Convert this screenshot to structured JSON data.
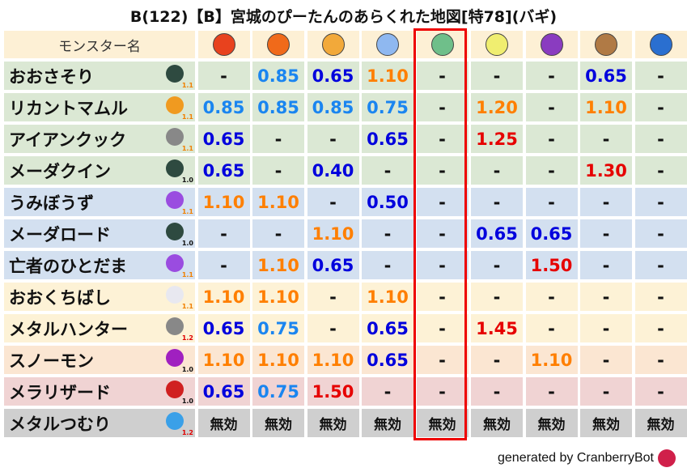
{
  "title": "B(122)【B】宮城のぴーたんのあらくれた地図[特78](バギ)",
  "header": {
    "name_label": "モンスター名",
    "elements": [
      {
        "icon": "mera-fireball-icon",
        "color": "#e8421e"
      },
      {
        "icon": "gira-flame-icon",
        "color": "#f06a1a"
      },
      {
        "icon": "io-explosion-icon",
        "color": "#f2a93a"
      },
      {
        "icon": "hyado-ice-icon",
        "color": "#8fb8f0"
      },
      {
        "icon": "bagi-tornado-icon",
        "color": "#6fbf8a"
      },
      {
        "icon": "dein-light-icon",
        "color": "#f0ee70"
      },
      {
        "icon": "doruma-dark-icon",
        "color": "#8a3cc0"
      },
      {
        "icon": "jibasu-earth-icon",
        "color": "#b07a45"
      },
      {
        "icon": "water-wave-icon",
        "color": "#2a6fd0"
      }
    ],
    "highlighted_column": 4
  },
  "colors": {
    "highlight": "#ee0000",
    "weak_resist": "#1a85f0",
    "strong_resist": "#0000dd",
    "weak": "#ff7f00",
    "very_weak": "#e60000",
    "ver_1.0": "#111111",
    "ver_1.1": "#f08000",
    "ver_1.2": "#e00000"
  },
  "rows": [
    {
      "name": "おおさそり",
      "icon": "insect-icon",
      "icon_color": "#2e4a40",
      "version": "1.1",
      "bg": "#dbe8d4",
      "values": [
        "-",
        "0.85",
        "0.65",
        "1.10",
        "-",
        "-",
        "-",
        "0.65",
        "-"
      ]
    },
    {
      "name": "リカントマムル",
      "icon": "paw-icon",
      "icon_color": "#f09a20",
      "version": "1.1",
      "bg": "#dbe8d4",
      "values": [
        "0.85",
        "0.85",
        "0.85",
        "0.75",
        "-",
        "1.20",
        "-",
        "1.10",
        "-"
      ]
    },
    {
      "name": "アイアンクック",
      "icon": "gear-icon",
      "icon_color": "#888888",
      "version": "1.1",
      "bg": "#dbe8d4",
      "values": [
        "0.65",
        "-",
        "-",
        "0.65",
        "-",
        "1.25",
        "-",
        "-",
        "-"
      ]
    },
    {
      "name": "メーダクイン",
      "icon": "insect-icon",
      "icon_color": "#2e4a40",
      "version": "1.0",
      "bg": "#dbe8d4",
      "values": [
        "0.65",
        "-",
        "0.40",
        "-",
        "-",
        "-",
        "-",
        "1.30",
        "-"
      ]
    },
    {
      "name": "うみぼうず",
      "icon": "ghost-icon",
      "icon_color": "#9a4ce0",
      "version": "1.1",
      "bg": "#d3e0f0",
      "values": [
        "1.10",
        "1.10",
        "-",
        "0.50",
        "-",
        "-",
        "-",
        "-",
        "-"
      ]
    },
    {
      "name": "メーダロード",
      "icon": "insect-icon",
      "icon_color": "#2e4a40",
      "version": "1.0",
      "bg": "#d3e0f0",
      "values": [
        "-",
        "-",
        "1.10",
        "-",
        "-",
        "0.65",
        "0.65",
        "-",
        "-"
      ]
    },
    {
      "name": "亡者のひとだま",
      "icon": "ghost-icon",
      "icon_color": "#9a4ce0",
      "version": "1.1",
      "bg": "#d3e0f0",
      "values": [
        "-",
        "1.10",
        "0.65",
        "-",
        "-",
        "-",
        "1.50",
        "-",
        "-"
      ]
    },
    {
      "name": "おおくちばし",
      "icon": "wing-icon",
      "icon_color": "#e8e8f0",
      "version": "1.1",
      "bg": "#fdf2d6",
      "values": [
        "1.10",
        "1.10",
        "-",
        "1.10",
        "-",
        "-",
        "-",
        "-",
        "-"
      ]
    },
    {
      "name": "メタルハンター",
      "icon": "gear-icon",
      "icon_color": "#888888",
      "version": "1.2",
      "bg": "#fdf2d6",
      "values": [
        "0.65",
        "0.75",
        "-",
        "0.65",
        "-",
        "1.45",
        "-",
        "-",
        "-"
      ]
    },
    {
      "name": "スノーモン",
      "icon": "demon-icon",
      "icon_color": "#a020c0",
      "version": "1.0",
      "bg": "#fbe6d2",
      "values": [
        "1.10",
        "1.10",
        "1.10",
        "0.65",
        "-",
        "-",
        "1.10",
        "-",
        "-"
      ]
    },
    {
      "name": "メラリザード",
      "icon": "dragon-icon",
      "icon_color": "#d02020",
      "version": "1.0",
      "bg": "#f0d3d3",
      "values": [
        "0.65",
        "0.75",
        "1.50",
        "-",
        "-",
        "-",
        "-",
        "-",
        "-"
      ]
    },
    {
      "name": "メタルつむり",
      "icon": "slime-icon",
      "icon_color": "#3aa0e8",
      "version": "1.2",
      "bg": "#cfcfcf",
      "values": [
        "無効",
        "無効",
        "無効",
        "無効",
        "無効",
        "無効",
        "無効",
        "無効",
        "無効"
      ]
    }
  ],
  "footer": {
    "text": "generated by CranberryBot",
    "icon": "cranberry-bot-icon"
  }
}
